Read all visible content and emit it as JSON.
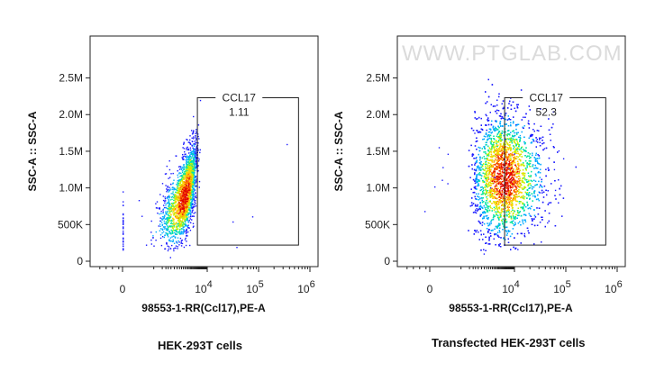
{
  "watermark": "WWW.PTGLAB.COM",
  "chart_data": [
    {
      "type": "scatter",
      "caption": "HEK-293T cells",
      "xlabel": "98553-1-RR(Ccl17),PE-A",
      "ylabel": "SSC-A :: SSC-A",
      "x_scale": "biexponential",
      "y_ticks": [
        "0",
        "500K",
        "1.0M",
        "1.5M",
        "2.0M",
        "2.5M"
      ],
      "y_tick_values": [
        0,
        500000,
        1000000,
        1500000,
        2000000,
        2500000
      ],
      "ylim": [
        0,
        2900000
      ],
      "x_ticks": [
        {
          "base": "0",
          "exp": "",
          "value": 0
        },
        {
          "base": "10",
          "exp": "4",
          "value": 10000
        },
        {
          "base": "10",
          "exp": "5",
          "value": 100000
        },
        {
          "base": "10",
          "exp": "6",
          "value": 1000000
        }
      ],
      "gate": {
        "name": "CCL17",
        "percent": "1.11",
        "x_range": [
          5500,
          600000
        ],
        "y_range": [
          220000,
          2230000
        ]
      },
      "population": {
        "x_center": 2500,
        "y_center": 900000,
        "x_spread": 1800,
        "y_spread": 340000,
        "events": 2400
      },
      "colormap": [
        "#1a1aff",
        "#00aaff",
        "#00e5a0",
        "#c8f000",
        "#ffd000",
        "#ff7000",
        "#e00000"
      ]
    },
    {
      "type": "scatter",
      "caption": "Transfected HEK-293T cells",
      "xlabel": "98553-1-RR(Ccl17),PE-A",
      "ylabel": "SSC-A :: SSC-A",
      "x_scale": "biexponential",
      "y_ticks": [
        "0",
        "500K",
        "1.0M",
        "1.5M",
        "2.0M",
        "2.5M"
      ],
      "y_tick_values": [
        0,
        500000,
        1000000,
        1500000,
        2000000,
        2500000
      ],
      "ylim": [
        0,
        2900000
      ],
      "x_ticks": [
        {
          "base": "0",
          "exp": "",
          "value": 0
        },
        {
          "base": "10",
          "exp": "4",
          "value": 10000
        },
        {
          "base": "10",
          "exp": "5",
          "value": 100000
        },
        {
          "base": "10",
          "exp": "6",
          "value": 1000000
        }
      ],
      "gate": {
        "name": "CCL17",
        "percent": "52.3",
        "x_range": [
          5500,
          600000
        ],
        "y_range": [
          220000,
          2230000
        ]
      },
      "population": {
        "x_center": 5200,
        "y_center": 1150000,
        "x_spread": 9000,
        "y_spread": 420000,
        "events": 5200
      },
      "colormap": [
        "#1a1aff",
        "#00aaff",
        "#00e5a0",
        "#c8f000",
        "#ffd000",
        "#ff7000",
        "#e00000"
      ]
    }
  ]
}
